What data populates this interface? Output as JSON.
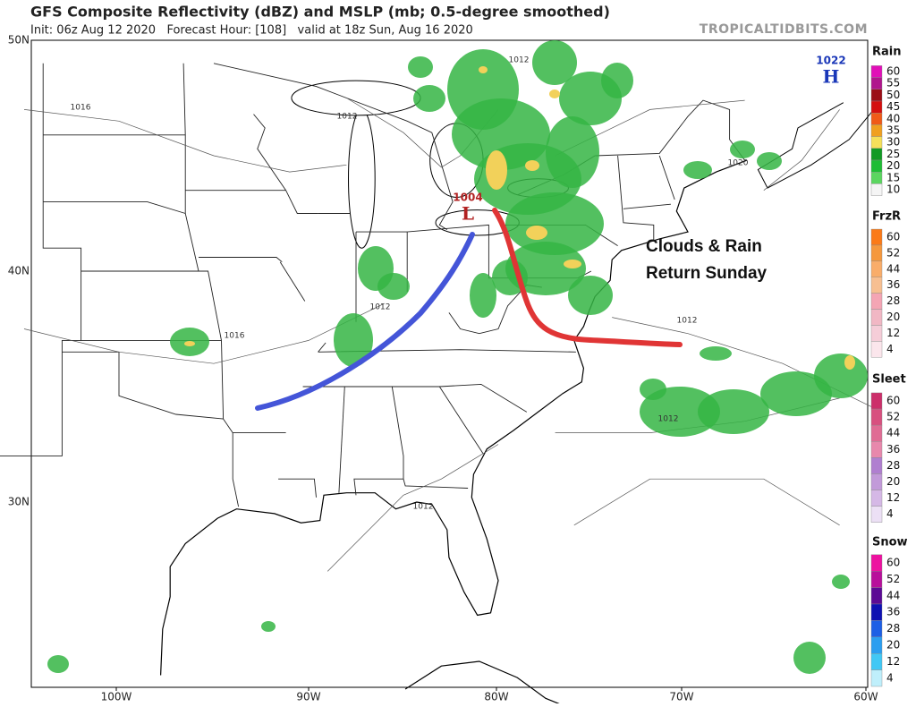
{
  "header": {
    "title": "GFS Composite Reflectivity (dBZ) and MSLP (mb; 0.5-degree smoothed)",
    "subtitle": "Init: 06z Aug 12 2020   Forecast Hour: [108]   valid at 18z Sun, Aug 16 2020",
    "source": "TROPICALTIDBITS.COM"
  },
  "map": {
    "lat_labels": [
      "50N",
      "40N",
      "30N"
    ],
    "lon_labels": [
      "100W",
      "90W",
      "80W",
      "70W",
      "60W"
    ],
    "pressure_centers": [
      {
        "value": "1022",
        "label": "H"
      },
      {
        "value": "1004",
        "label": "L"
      }
    ],
    "isobar_labels": [
      "1016",
      "1012",
      "1016",
      "1012",
      "1020",
      "1012",
      "1012",
      "1012",
      "1012"
    ],
    "annotation": [
      "Clouds & Rain",
      "Return Sunday"
    ]
  },
  "legends": [
    {
      "title": "Rain",
      "labels": [
        60,
        55,
        50,
        45,
        40,
        35,
        30,
        25,
        20,
        15,
        10
      ]
    },
    {
      "title": "FrzR",
      "labels": [
        60,
        52,
        44,
        36,
        28,
        20,
        12,
        4
      ]
    },
    {
      "title": "Sleet",
      "labels": [
        60,
        52,
        44,
        36,
        28,
        20,
        12,
        4
      ]
    },
    {
      "title": "Snow",
      "labels": [
        60,
        52,
        44,
        36,
        28,
        20,
        12,
        4
      ]
    }
  ]
}
